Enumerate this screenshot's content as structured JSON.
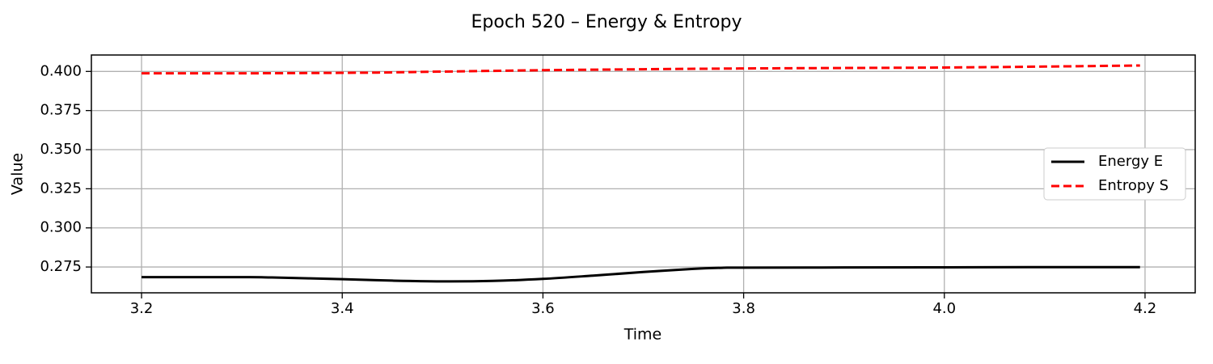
{
  "chart_data": {
    "type": "line",
    "title": "Epoch 520 – Energy & Entropy",
    "xlabel": "Time",
    "ylabel": "Value",
    "xlim": [
      3.15,
      4.25
    ],
    "ylim": [
      0.2585,
      0.4105
    ],
    "x_ticks": [
      3.2,
      3.4,
      3.6,
      3.8,
      4.0,
      4.2
    ],
    "x_tick_labels": [
      "3.2",
      "3.4",
      "3.6",
      "3.8",
      "4.0",
      "4.2"
    ],
    "y_ticks": [
      0.275,
      0.3,
      0.325,
      0.35,
      0.375,
      0.4
    ],
    "y_tick_labels": [
      "0.275",
      "0.300",
      "0.325",
      "0.350",
      "0.375",
      "0.400"
    ],
    "grid": true,
    "legend_position": "center-right",
    "series": [
      {
        "name": "Energy E",
        "color": "#000000",
        "style": "solid",
        "x": [
          3.2,
          3.3,
          3.33,
          3.4,
          3.45,
          3.5,
          3.55,
          3.6,
          3.65,
          3.7,
          3.75,
          3.78,
          3.8,
          3.9,
          4.0,
          4.1,
          4.195
        ],
        "y": [
          0.2685,
          0.2685,
          0.2683,
          0.2672,
          0.2663,
          0.2658,
          0.2661,
          0.2674,
          0.2695,
          0.2718,
          0.2738,
          0.2745,
          0.2746,
          0.2747,
          0.2748,
          0.2749,
          0.2749
        ]
      },
      {
        "name": "Entropy S",
        "color": "#ff0000",
        "style": "dashed",
        "x": [
          3.2,
          3.3,
          3.4,
          3.45,
          3.5,
          3.6,
          3.7,
          3.8,
          3.9,
          4.0,
          4.1,
          4.195
        ],
        "y": [
          0.3988,
          0.3988,
          0.3991,
          0.3994,
          0.3999,
          0.4008,
          0.4014,
          0.4019,
          0.4022,
          0.4025,
          0.4031,
          0.4038
        ]
      }
    ]
  }
}
